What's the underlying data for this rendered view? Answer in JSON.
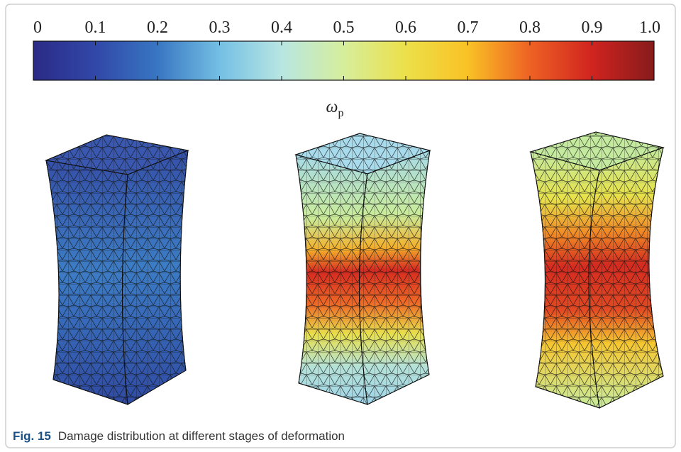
{
  "colorbar": {
    "ticks": [
      "0",
      "0.1",
      "0.2",
      "0.3",
      "0.4",
      "0.5",
      "0.6",
      "0.7",
      "0.8",
      "0.9",
      "1.0"
    ],
    "label": "ω",
    "label_subscript": "p"
  },
  "caption": {
    "number": "Fig. 15",
    "text": "Damage distribution at different stages of deformation"
  }
}
